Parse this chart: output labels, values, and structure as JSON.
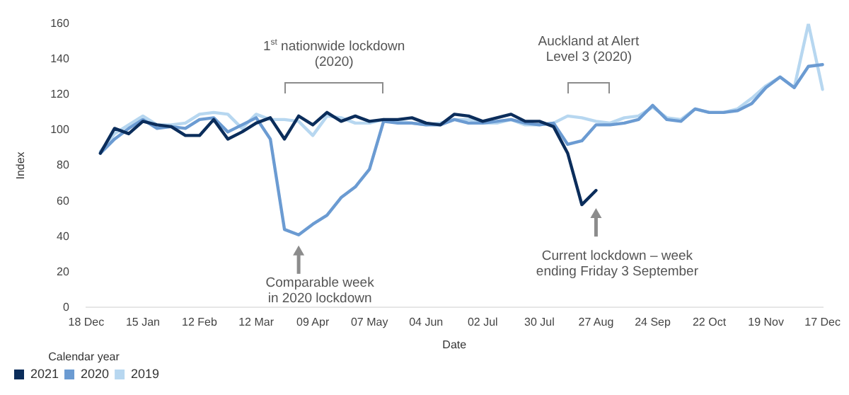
{
  "chart_data": {
    "type": "line",
    "xlabel": "Date",
    "ylabel": "Index",
    "legend_title": "Calendar year",
    "legend": "bottom left",
    "grid": false,
    "marker": "none",
    "line_style": "solid",
    "categories": [
      "18 Dec",
      null,
      null,
      null,
      "15 Jan",
      null,
      null,
      null,
      "12 Feb",
      null,
      null,
      null,
      "12 Mar",
      null,
      null,
      null,
      "09 Apr",
      null,
      null,
      null,
      "07 May",
      null,
      null,
      null,
      "04 Jun",
      null,
      null,
      null,
      "02 Jul",
      null,
      null,
      null,
      "30 Jul",
      null,
      null,
      null,
      "27 Aug",
      null,
      null,
      null,
      "24 Sep",
      null,
      null,
      null,
      "22 Oct",
      null,
      null,
      null,
      "19 Nov",
      null,
      null,
      null,
      "17 Dec"
    ],
    "ylim": [
      0,
      160
    ],
    "yticks": [
      0,
      20,
      40,
      60,
      80,
      100,
      120,
      140,
      160
    ],
    "series": [
      {
        "name": "2021",
        "color": "#0b2d5b",
        "values": [
          null,
          87,
          101,
          98,
          105,
          103,
          102,
          97,
          97,
          106,
          95,
          99,
          104,
          107,
          95,
          108,
          103,
          110,
          105,
          108,
          105,
          106,
          106,
          107,
          104,
          103,
          109,
          108,
          105,
          107,
          109,
          105,
          105,
          102,
          87,
          58,
          66,
          null,
          null,
          null,
          null,
          null,
          null,
          null,
          null,
          null,
          null,
          null,
          null,
          null,
          null,
          null,
          null
        ]
      },
      {
        "name": "2020",
        "color": "#6b9bd2",
        "values": [
          null,
          87,
          95,
          101,
          106,
          101,
          102,
          101,
          106,
          107,
          99,
          103,
          107,
          95,
          44,
          41,
          47,
          52,
          62,
          68,
          78,
          105,
          104,
          104,
          103,
          103,
          106,
          104,
          104,
          105,
          106,
          104,
          103,
          104,
          92,
          94,
          103,
          103,
          104,
          106,
          114,
          106,
          105,
          112,
          110,
          110,
          111,
          115,
          124,
          130,
          124,
          136,
          137
        ]
      },
      {
        "name": "2019",
        "color": "#b7d7f0",
        "values": [
          null,
          88,
          98,
          103,
          108,
          103,
          103,
          104,
          109,
          110,
          109,
          101,
          109,
          106,
          106,
          105,
          97,
          108,
          107,
          104,
          104,
          106,
          105,
          104,
          103,
          104,
          106,
          106,
          104,
          104,
          106,
          103,
          103,
          104,
          108,
          107,
          105,
          104,
          107,
          108,
          113,
          107,
          106,
          112,
          110,
          110,
          112,
          118,
          125,
          130,
          124,
          160,
          123
        ]
      }
    ],
    "annotations": [
      "1$^{st}$ nationwide lockdown\n(2020)",
      "Auckland at Alert\nLevel 3 (2020)",
      "Comparable week\nin 2020 lockdown",
      "Current lockdown – week\nending Friday 3 September"
    ]
  }
}
